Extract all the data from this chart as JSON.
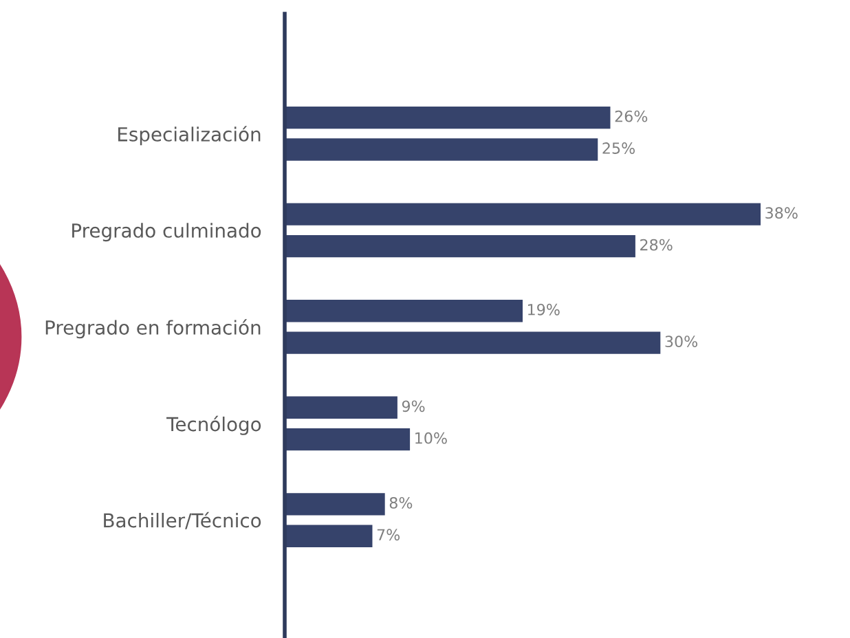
{
  "chart_data": {
    "type": "bar",
    "orientation": "horizontal",
    "categories": [
      "Especialización",
      "Pregrado culminado",
      "Pregrado en formación",
      "Tecnólogo",
      "Bachiller/Técnico"
    ],
    "series": [
      {
        "color": "#36436b",
        "values": [
          26,
          38,
          19,
          9,
          8
        ],
        "value_labels": [
          "26%",
          "38%",
          "19%",
          "9%",
          "8%"
        ]
      },
      {
        "color": "#36436b",
        "values": [
          25,
          28,
          30,
          10,
          7
        ],
        "value_labels": [
          "25%",
          "28%",
          "30%",
          "10%",
          "7%"
        ]
      }
    ],
    "tick_labels": "y",
    "grid": false,
    "legend": false
  }
}
